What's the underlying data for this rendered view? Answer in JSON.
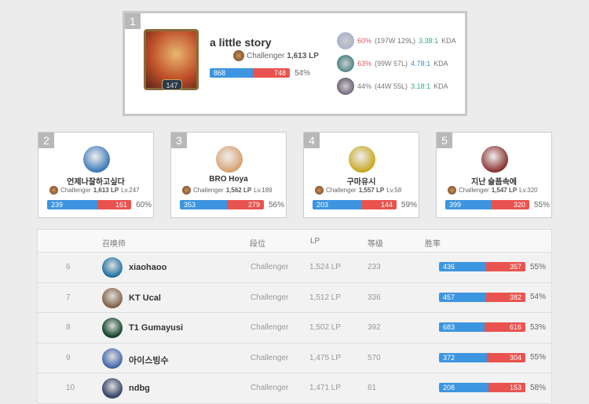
{
  "top": {
    "rank": "1",
    "name": "a little story",
    "level": "147",
    "tier": "Challenger",
    "lp": "1,613 LP",
    "wins": 868,
    "losses": 748,
    "wins_label": "868",
    "losses_label": "748",
    "winrate": "54%",
    "champions": [
      {
        "wr": "60%",
        "record": "(197W 129L)",
        "kda": "3.38:1",
        "kda_suffix": "KDA",
        "wr_color": "red",
        "kda_color": "grn",
        "icon": "#9aa8c8"
      },
      {
        "wr": "63%",
        "record": "(99W 57L)",
        "kda": "4.78:1",
        "kda_suffix": "KDA",
        "wr_color": "red",
        "kda_color": "blu",
        "icon": "#1a6a6a"
      },
      {
        "wr": "44%",
        "record": "(44W 55L)",
        "kda": "3.18:1",
        "kda_suffix": "KDA",
        "wr_color": "",
        "kda_color": "grn",
        "icon": "#4a3a5a"
      }
    ]
  },
  "cards": [
    {
      "rank": "2",
      "name": "언제나잘하고싶다",
      "tier": "Challenger",
      "lp": "1,613 LP",
      "level": "Lv.247",
      "wins": 239,
      "losses": 161,
      "wins_label": "239",
      "losses_label": "161",
      "winrate": "60%",
      "color": "#3a78b8"
    },
    {
      "rank": "3",
      "name": "BRO Hoya",
      "tier": "Challenger",
      "lp": "1,562 LP",
      "level": "Lv.189",
      "wins": 353,
      "losses": 279,
      "wins_label": "353",
      "losses_label": "279",
      "winrate": "56%",
      "color": "#d8a070"
    },
    {
      "rank": "4",
      "name": "구마유시",
      "tier": "Challenger",
      "lp": "1,557 LP",
      "level": "Lv.58",
      "wins": 203,
      "losses": 144,
      "wins_label": "203",
      "losses_label": "144",
      "winrate": "59%",
      "color": "#c8a820"
    },
    {
      "rank": "5",
      "name": "지난 슬픔속에",
      "tier": "Challenger",
      "lp": "1,547 LP",
      "level": "Lv.320",
      "wins": 399,
      "losses": 320,
      "wins_label": "399",
      "losses_label": "320",
      "winrate": "55%",
      "color": "#8a3030"
    }
  ],
  "table": {
    "headers": {
      "summoner": "召唤师",
      "tier": "段位",
      "lp": "LP",
      "level": "等级",
      "winrate": "胜率"
    },
    "rows": [
      {
        "rank": "6",
        "name": "xiaohaoo",
        "tier": "Challenger",
        "lp": "1,524 LP",
        "level": "233",
        "wins": 436,
        "losses": 357,
        "wins_label": "436",
        "losses_label": "357",
        "winrate": "55%",
        "color": "#2a7aa8"
      },
      {
        "rank": "7",
        "name": "KT Ucal",
        "tier": "Challenger",
        "lp": "1,512 LP",
        "level": "336",
        "wins": 457,
        "losses": 382,
        "wins_label": "457",
        "losses_label": "382",
        "winrate": "54%",
        "color": "#8a6a50"
      },
      {
        "rank": "8",
        "name": "T1 Gumayusi",
        "tier": "Challenger",
        "lp": "1,502 LP",
        "level": "392",
        "wins": 683,
        "losses": 616,
        "wins_label": "683",
        "losses_label": "616",
        "winrate": "53%",
        "color": "#1a4a30"
      },
      {
        "rank": "9",
        "name": "아이스빙수",
        "tier": "Challenger",
        "lp": "1,475 LP",
        "level": "570",
        "wins": 372,
        "losses": 304,
        "wins_label": "372",
        "losses_label": "304",
        "winrate": "55%",
        "color": "#4a70b0"
      },
      {
        "rank": "10",
        "name": "ndbg",
        "tier": "Challenger",
        "lp": "1,471 LP",
        "level": "61",
        "wins": 208,
        "losses": 153,
        "wins_label": "208",
        "losses_label": "153",
        "winrate": "58%",
        "color": "#3a4a6a"
      }
    ]
  },
  "colors": {
    "wins": "#3d95e0",
    "losses": "#e9534f"
  }
}
